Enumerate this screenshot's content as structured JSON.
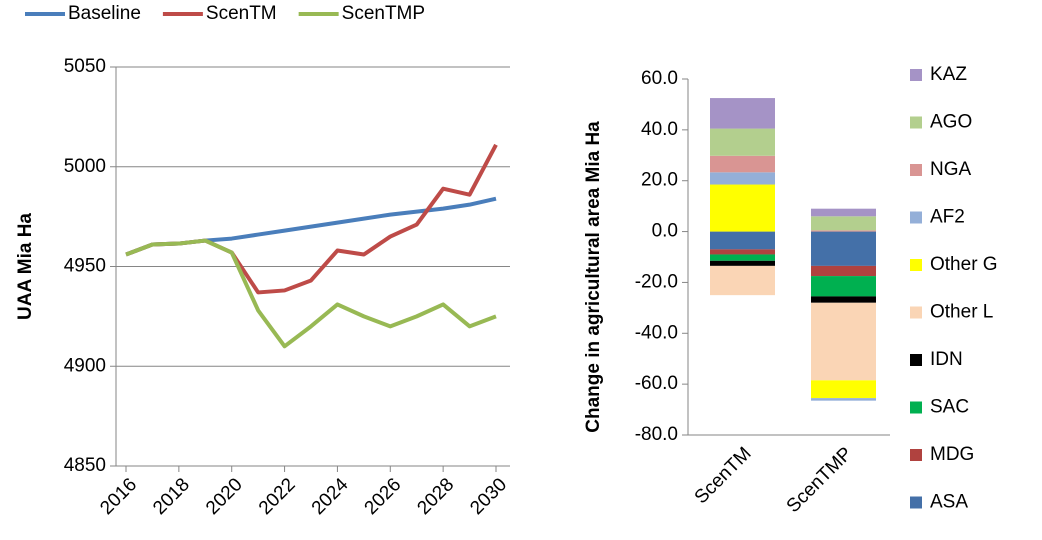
{
  "chart_data": [
    {
      "type": "line",
      "ylabel": "UAA Mia Ha",
      "x": [
        2016,
        2017,
        2018,
        2019,
        2020,
        2021,
        2022,
        2023,
        2024,
        2025,
        2026,
        2027,
        2028,
        2029,
        2030
      ],
      "xlim": [
        2016,
        2030
      ],
      "xticks": [
        2016,
        2018,
        2020,
        2022,
        2024,
        2026,
        2028,
        2030
      ],
      "ylim": [
        4850,
        5050
      ],
      "yticks": [
        4850,
        4900,
        4950,
        5000,
        5050
      ],
      "grid": true,
      "series": [
        {
          "name": "Baseline",
          "color": "#4a7ebb",
          "values": [
            4956,
            4961,
            4961.5,
            4963,
            4964,
            4966,
            4968,
            4970,
            4972,
            4974,
            4976,
            4977.5,
            4979,
            4981,
            4984
          ]
        },
        {
          "name": "ScenTM",
          "color": "#be4b48",
          "values": [
            4956,
            4961,
            4961.5,
            4963,
            4957,
            4937,
            4938,
            4943,
            4958,
            4956,
            4965,
            4971,
            4989,
            4986,
            5011
          ]
        },
        {
          "name": "ScenTMP",
          "color": "#98b954",
          "values": [
            4956,
            4961,
            4961.5,
            4963,
            4957,
            4928,
            4910,
            4920,
            4931,
            4925,
            4920,
            4925,
            4931,
            4920,
            4925
          ]
        }
      ]
    },
    {
      "type": "bar",
      "stacked": true,
      "ylabel": "Change in agricultural area Mia Ha",
      "categories": [
        "ScenTM",
        "ScenTMP"
      ],
      "ylim": [
        -80,
        60
      ],
      "yticks": [
        {
          "value": -80,
          "label": "-80.0"
        },
        {
          "value": -60,
          "label": "-60.0"
        },
        {
          "value": -40,
          "label": "-40.0"
        },
        {
          "value": -20,
          "label": "-20.0"
        },
        {
          "value": 0,
          "label": "0.0"
        },
        {
          "value": 20,
          "label": "20.0"
        },
        {
          "value": 40,
          "label": "40.0"
        },
        {
          "value": 60,
          "label": "60.0"
        }
      ],
      "grid": false,
      "series": [
        {
          "name": "ASA",
          "color": "#4470a8",
          "values": [
            -7,
            -13.5
          ]
        },
        {
          "name": "MDG",
          "color": "#b0423f",
          "values": [
            -2,
            -4
          ]
        },
        {
          "name": "SAC",
          "color": "#00b050",
          "values": [
            -2.5,
            -8
          ]
        },
        {
          "name": "IDN",
          "color": "#000000",
          "values": [
            -2,
            -2.5
          ]
        },
        {
          "name": "Other L",
          "color": "#fad5b5",
          "values": [
            -11.5,
            -30.5
          ]
        },
        {
          "name": "Other G",
          "color": "#ffff00",
          "values": [
            18.5,
            -7
          ]
        },
        {
          "name": "AF2",
          "color": "#94afd8",
          "values": [
            4.8,
            -1
          ]
        },
        {
          "name": "NGA",
          "color": "#d99593",
          "values": [
            6.5,
            0.5
          ]
        },
        {
          "name": "AGO",
          "color": "#b3cf8e",
          "values": [
            10.7,
            5.5
          ]
        },
        {
          "name": "KAZ",
          "color": "#a593c6",
          "values": [
            12,
            3
          ]
        }
      ]
    }
  ]
}
